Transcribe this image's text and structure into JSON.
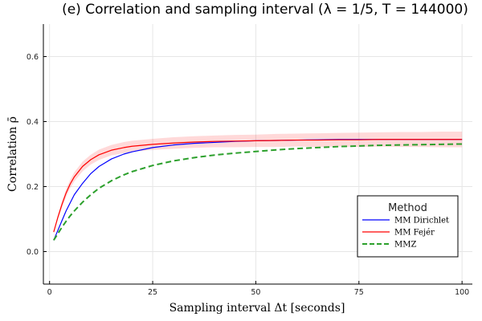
{
  "chart_data": {
    "type": "line",
    "title": "(e) Correlation and sampling interval (λ = 1/5, T = 144000)",
    "xlabel": "Sampling interval Δt [seconds]",
    "ylabel": "Correlation ρ̄",
    "xlim": [
      -1.5,
      102.5
    ],
    "ylim": [
      -0.1,
      0.7
    ],
    "xticks": [
      0,
      25,
      50,
      75,
      100
    ],
    "xtick_labels": [
      "0",
      "25",
      "50",
      "75",
      "100"
    ],
    "yticks": [
      0.0,
      0.2,
      0.4,
      0.6
    ],
    "ytick_labels": [
      "0.0",
      "0.2",
      "0.4",
      "0.6"
    ],
    "grid": true,
    "legend_title": "Method",
    "legend_position": "bottom-right",
    "series": [
      {
        "name": "MM Dirichlet",
        "color": "#0000ff",
        "style": "solid",
        "x": [
          1,
          2,
          3,
          4,
          5,
          6,
          8,
          10,
          12,
          15,
          18,
          20,
          25,
          30,
          35,
          40,
          45,
          50,
          55,
          60,
          65,
          70,
          75,
          80,
          85,
          90,
          95,
          100
        ],
        "y": [
          0.035,
          0.065,
          0.095,
          0.125,
          0.15,
          0.175,
          0.21,
          0.24,
          0.262,
          0.285,
          0.3,
          0.307,
          0.32,
          0.328,
          0.333,
          0.336,
          0.339,
          0.341,
          0.342,
          0.343,
          0.344,
          0.345,
          0.345,
          0.345,
          0.345,
          0.345,
          0.345,
          0.345
        ]
      },
      {
        "name": "MM Fejér",
        "color": "#ff0000",
        "style": "solid",
        "x": [
          1,
          2,
          3,
          4,
          5,
          6,
          8,
          10,
          12,
          15,
          18,
          20,
          25,
          30,
          35,
          40,
          45,
          50,
          55,
          60,
          65,
          70,
          75,
          80,
          85,
          90,
          95,
          100
        ],
        "y": [
          0.06,
          0.105,
          0.145,
          0.18,
          0.208,
          0.23,
          0.262,
          0.283,
          0.298,
          0.312,
          0.32,
          0.324,
          0.33,
          0.334,
          0.337,
          0.339,
          0.34,
          0.341,
          0.342,
          0.343,
          0.343,
          0.344,
          0.344,
          0.345,
          0.345,
          0.345,
          0.345,
          0.345
        ],
        "band": [
          0.0,
          0.006,
          0.01,
          0.012,
          0.013,
          0.014,
          0.015,
          0.015,
          0.016,
          0.016,
          0.017,
          0.017,
          0.017,
          0.018,
          0.018,
          0.018,
          0.019,
          0.019,
          0.02,
          0.02,
          0.021,
          0.021,
          0.022,
          0.022,
          0.023,
          0.023,
          0.024,
          0.024
        ]
      },
      {
        "name": "MMZ",
        "color": "#2ca02c",
        "style": "dashed",
        "x": [
          1,
          2,
          3,
          4,
          5,
          6,
          8,
          10,
          12,
          15,
          18,
          20,
          25,
          30,
          35,
          40,
          45,
          50,
          55,
          60,
          65,
          70,
          75,
          80,
          85,
          90,
          95,
          100
        ],
        "y": [
          0.035,
          0.055,
          0.075,
          0.093,
          0.11,
          0.125,
          0.152,
          0.175,
          0.195,
          0.218,
          0.236,
          0.246,
          0.265,
          0.279,
          0.289,
          0.297,
          0.303,
          0.308,
          0.313,
          0.317,
          0.32,
          0.323,
          0.325,
          0.327,
          0.328,
          0.329,
          0.33,
          0.331
        ]
      }
    ]
  }
}
